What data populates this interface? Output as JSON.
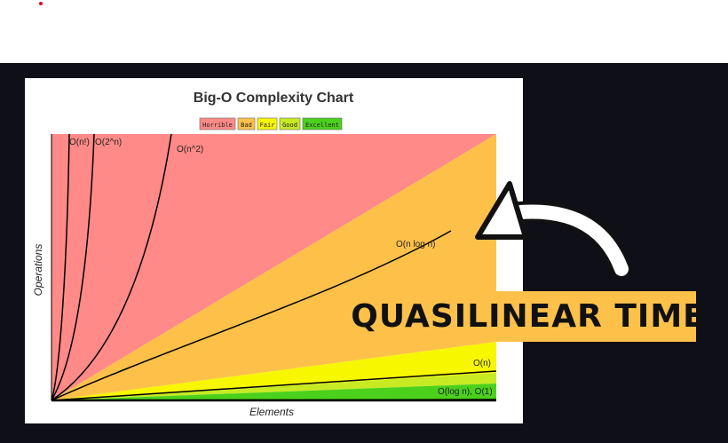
{
  "colors": {
    "frame_background": "#0f1017",
    "top_dot": "#e8001c",
    "horrible": "#ff8a87",
    "bad": "#fdc14a",
    "fair": "#f7f700",
    "good": "#c7ea23",
    "excellent": "#4bd11c",
    "curve": "#000000",
    "callout_background": "#fdc14a",
    "arrow": "#ffffff",
    "arrow_outline": "#111111"
  },
  "callout": {
    "text": "QUASILINEAR TIME",
    "arrow_icon": "curved-arrow-icon"
  },
  "chart_data": {
    "type": "line",
    "title": "Big-O Complexity Chart",
    "xlabel": "Elements",
    "ylabel": "Operations",
    "legend_position": "top",
    "legend": [
      "Horrible",
      "Bad",
      "Fair",
      "Good",
      "Excellent"
    ],
    "series": [
      {
        "name": "O(n!)",
        "label": "O(n!)"
      },
      {
        "name": "O(2^n)",
        "label": "O(2^n)"
      },
      {
        "name": "O(n^2)",
        "label": "O(n^2)"
      },
      {
        "name": "O(n log n)",
        "label": "O(n log n)"
      },
      {
        "name": "O(n)",
        "label": "O(n)"
      },
      {
        "name": "O(log n), O(1)",
        "label": "O(log n), O(1)"
      }
    ]
  }
}
